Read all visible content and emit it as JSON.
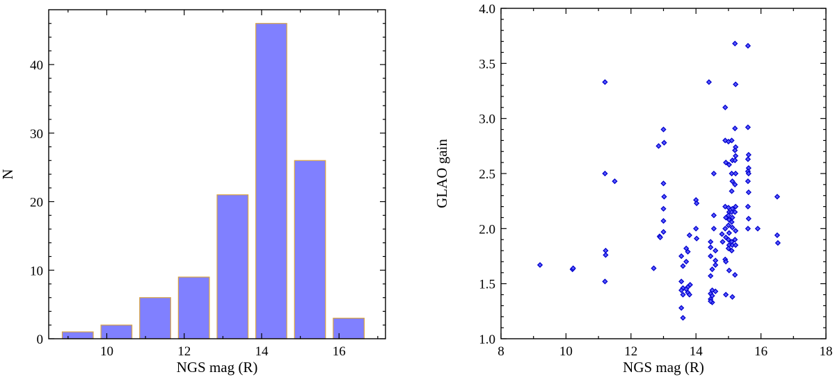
{
  "chart_data": [
    {
      "type": "bar",
      "title": "",
      "xlabel": "NGS mag (R)",
      "ylabel": "N",
      "bin_centers": [
        9.25,
        10.25,
        11.25,
        12.25,
        13.25,
        14.25,
        15.25,
        16.25
      ],
      "bin_width": 0.8,
      "values": [
        1,
        2,
        6,
        9,
        21,
        46,
        26,
        3
      ],
      "xlim": [
        8.5,
        17.2
      ],
      "ylim": [
        0,
        48
      ],
      "xticks": [
        10,
        12,
        14,
        16
      ],
      "yticks": [
        0,
        10,
        20,
        30,
        40
      ],
      "xtick_labels": [
        "10",
        "12",
        "14",
        "16"
      ],
      "ytick_labels": [
        "0",
        "10",
        "20",
        "30",
        "40"
      ],
      "colors": {
        "fill": "#8080ff",
        "edge": "#d9a441"
      }
    },
    {
      "type": "scatter",
      "title": "",
      "xlabel": "NGS mag (R)",
      "ylabel": "GLAO gain",
      "xlim": [
        8,
        18
      ],
      "ylim": [
        1.0,
        4.0
      ],
      "xticks": [
        8,
        10,
        12,
        14,
        16,
        18
      ],
      "yticks": [
        1.0,
        1.5,
        2.0,
        2.5,
        3.0,
        3.5,
        4.0
      ],
      "xtick_labels": [
        "8",
        "10",
        "12",
        "14",
        "16",
        "18"
      ],
      "ytick_labels": [
        "1.0",
        "1.5",
        "2.0",
        "2.5",
        "3.0",
        "3.5",
        "4.0"
      ],
      "colors": {
        "fill": "#5a5aff",
        "edge": "#0000cc"
      },
      "points": [
        [
          9.2,
          1.67
        ],
        [
          10.2,
          1.63
        ],
        [
          10.22,
          1.64
        ],
        [
          11.2,
          3.33
        ],
        [
          11.2,
          2.5
        ],
        [
          11.22,
          1.8
        ],
        [
          11.22,
          1.76
        ],
        [
          11.2,
          1.52
        ],
        [
          11.5,
          2.43
        ],
        [
          12.7,
          1.64
        ],
        [
          12.85,
          2.75
        ],
        [
          12.88,
          1.93
        ],
        [
          12.9,
          1.92
        ],
        [
          13.0,
          2.9
        ],
        [
          13.02,
          2.78
        ],
        [
          13.0,
          2.41
        ],
        [
          13.02,
          2.29
        ],
        [
          13.0,
          2.18
        ],
        [
          13.0,
          2.07
        ],
        [
          13.0,
          1.97
        ],
        [
          13.55,
          1.75
        ],
        [
          13.6,
          1.66
        ],
        [
          13.55,
          1.52
        ],
        [
          13.6,
          1.46
        ],
        [
          13.55,
          1.44
        ],
        [
          13.6,
          1.4
        ],
        [
          13.55,
          1.28
        ],
        [
          13.6,
          1.19
        ],
        [
          13.7,
          1.82
        ],
        [
          13.75,
          1.79
        ],
        [
          13.7,
          1.7
        ],
        [
          13.75,
          1.47
        ],
        [
          13.7,
          1.45
        ],
        [
          13.75,
          1.42
        ],
        [
          13.8,
          1.94
        ],
        [
          13.82,
          1.49
        ],
        [
          13.8,
          1.4
        ],
        [
          14.0,
          2.26
        ],
        [
          14.02,
          2.23
        ],
        [
          14.0,
          2.0
        ],
        [
          14.02,
          1.91
        ],
        [
          14.4,
          3.33
        ],
        [
          14.45,
          1.88
        ],
        [
          14.45,
          1.83
        ],
        [
          14.45,
          1.75
        ],
        [
          14.5,
          1.63
        ],
        [
          14.45,
          1.57
        ],
        [
          14.5,
          1.44
        ],
        [
          14.45,
          1.41
        ],
        [
          14.5,
          1.39
        ],
        [
          14.45,
          1.36
        ],
        [
          14.5,
          1.33
        ],
        [
          14.45,
          1.34
        ],
        [
          14.55,
          2.5
        ],
        [
          14.55,
          2.12
        ],
        [
          14.55,
          2.0
        ],
        [
          14.6,
          1.8
        ],
        [
          14.6,
          1.71
        ],
        [
          14.6,
          1.67
        ],
        [
          14.6,
          1.43
        ],
        [
          14.8,
          1.95
        ],
        [
          14.82,
          1.88
        ],
        [
          14.9,
          3.1
        ],
        [
          14.9,
          2.8
        ],
        [
          14.92,
          2.6
        ],
        [
          14.9,
          2.2
        ],
        [
          14.92,
          2.1
        ],
        [
          14.9,
          2.0
        ],
        [
          14.92,
          1.92
        ],
        [
          14.9,
          1.72
        ],
        [
          14.92,
          1.7
        ],
        [
          14.92,
          1.4
        ],
        [
          15.0,
          2.79
        ],
        [
          15.02,
          2.58
        ],
        [
          15.0,
          2.19
        ],
        [
          15.02,
          2.15
        ],
        [
          15.0,
          2.12
        ],
        [
          15.02,
          2.08
        ],
        [
          15.0,
          2.03
        ],
        [
          15.02,
          1.96
        ],
        [
          15.0,
          1.9
        ],
        [
          15.02,
          1.85
        ],
        [
          15.0,
          1.82
        ],
        [
          15.02,
          1.62
        ],
        [
          15.1,
          2.8
        ],
        [
          15.12,
          2.62
        ],
        [
          15.1,
          2.5
        ],
        [
          15.12,
          2.43
        ],
        [
          15.1,
          2.34
        ],
        [
          15.12,
          2.18
        ],
        [
          15.1,
          2.15
        ],
        [
          15.12,
          2.1
        ],
        [
          15.1,
          2.06
        ],
        [
          15.12,
          2.01
        ],
        [
          15.1,
          1.88
        ],
        [
          15.12,
          1.85
        ],
        [
          15.1,
          1.8
        ],
        [
          15.12,
          1.38
        ],
        [
          15.2,
          3.68
        ],
        [
          15.22,
          3.31
        ],
        [
          15.2,
          2.91
        ],
        [
          15.22,
          2.74
        ],
        [
          15.2,
          2.71
        ],
        [
          15.22,
          2.66
        ],
        [
          15.2,
          2.62
        ],
        [
          15.22,
          2.5
        ],
        [
          15.2,
          2.4
        ],
        [
          15.22,
          2.2
        ],
        [
          15.2,
          2.15
        ],
        [
          15.22,
          1.98
        ],
        [
          15.2,
          1.9
        ],
        [
          15.22,
          1.85
        ],
        [
          15.2,
          1.58
        ],
        [
          15.6,
          3.66
        ],
        [
          15.6,
          2.92
        ],
        [
          15.62,
          2.67
        ],
        [
          15.6,
          2.63
        ],
        [
          15.62,
          2.55
        ],
        [
          15.6,
          2.52
        ],
        [
          15.62,
          2.5
        ],
        [
          15.6,
          2.43
        ],
        [
          15.62,
          2.33
        ],
        [
          15.6,
          2.2
        ],
        [
          15.62,
          2.09
        ],
        [
          15.6,
          2.0
        ],
        [
          15.9,
          2.0
        ],
        [
          16.5,
          2.29
        ],
        [
          16.5,
          1.94
        ],
        [
          16.52,
          1.87
        ]
      ]
    }
  ]
}
